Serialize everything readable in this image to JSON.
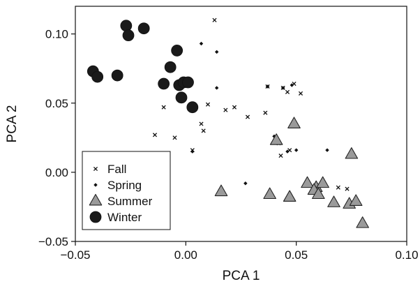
{
  "chart_data": {
    "type": "scatter",
    "title": "",
    "xlabel": "PCA 1",
    "ylabel": "PCA 2",
    "xlim": [
      -0.05,
      0.1
    ],
    "ylim": [
      -0.05,
      0.12
    ],
    "xticks": [
      -0.05,
      0.0,
      0.05,
      0.1
    ],
    "xtick_labels": [
      "−0.05",
      "0.00",
      "0.05",
      "0.10"
    ],
    "yticks": [
      -0.05,
      0.0,
      0.05,
      0.1
    ],
    "ytick_labels": [
      "−0.05",
      "0.00",
      "0.05",
      "0.10"
    ],
    "grid": false,
    "legend_position": "bottom-left",
    "series": [
      {
        "name": "Fall",
        "marker": "x",
        "color": "#111111",
        "points": [
          [
            0.013,
            0.11
          ],
          [
            -0.01,
            0.047
          ],
          [
            -0.014,
            0.027
          ],
          [
            -0.005,
            0.025
          ],
          [
            0.003,
            0.016
          ],
          [
            0.007,
            0.035
          ],
          [
            0.008,
            0.03
          ],
          [
            0.01,
            0.049
          ],
          [
            0.018,
            0.045
          ],
          [
            0.022,
            0.047
          ],
          [
            0.028,
            0.04
          ],
          [
            0.037,
            0.062
          ],
          [
            0.044,
            0.061
          ],
          [
            0.046,
            0.058
          ],
          [
            0.049,
            0.064
          ],
          [
            0.052,
            0.057
          ],
          [
            0.036,
            0.043
          ],
          [
            0.042,
            0.021
          ],
          [
            0.043,
            0.012
          ],
          [
            0.047,
            0.016
          ],
          [
            0.069,
            -0.011
          ],
          [
            0.073,
            -0.012
          ]
        ]
      },
      {
        "name": "Spring",
        "marker": "diamond",
        "color": "#111111",
        "points": [
          [
            0.007,
            0.093
          ],
          [
            0.014,
            0.087
          ],
          [
            0.014,
            0.061
          ],
          [
            0.003,
            0.015
          ],
          [
            0.046,
            0.015
          ],
          [
            0.05,
            0.016
          ],
          [
            0.04,
            0.026
          ],
          [
            0.064,
            0.016
          ],
          [
            0.027,
            -0.008
          ],
          [
            0.037,
            0.062
          ],
          [
            0.044,
            0.061
          ],
          [
            0.048,
            0.063
          ]
        ]
      },
      {
        "name": "Summer",
        "marker": "triangle",
        "color": "#9a9a9a",
        "points": [
          [
            0.049,
            0.035
          ],
          [
            0.041,
            0.023
          ],
          [
            0.075,
            0.013
          ],
          [
            0.016,
            -0.014
          ],
          [
            0.038,
            -0.016
          ],
          [
            0.047,
            -0.018
          ],
          [
            0.055,
            -0.008
          ],
          [
            0.059,
            -0.011
          ],
          [
            0.062,
            -0.008
          ],
          [
            0.058,
            -0.013
          ],
          [
            0.06,
            -0.016
          ],
          [
            0.067,
            -0.022
          ],
          [
            0.074,
            -0.023
          ],
          [
            0.077,
            -0.021
          ],
          [
            0.08,
            -0.037
          ]
        ]
      },
      {
        "name": "Winter",
        "marker": "circle",
        "color": "#1a1a1a",
        "points": [
          [
            -0.027,
            0.106
          ],
          [
            -0.026,
            0.099
          ],
          [
            -0.019,
            0.104
          ],
          [
            -0.004,
            0.088
          ],
          [
            -0.042,
            0.073
          ],
          [
            -0.04,
            0.069
          ],
          [
            -0.031,
            0.07
          ],
          [
            -0.007,
            0.076
          ],
          [
            -0.01,
            0.064
          ],
          [
            -0.003,
            0.063
          ],
          [
            -0.001,
            0.065
          ],
          [
            0.001,
            0.065
          ],
          [
            -0.002,
            0.054
          ],
          [
            0.003,
            0.047
          ]
        ]
      }
    ],
    "legend": [
      {
        "label": "Fall",
        "marker": "x"
      },
      {
        "label": "Spring",
        "marker": "diamond"
      },
      {
        "label": "Summer",
        "marker": "triangle"
      },
      {
        "label": "Winter",
        "marker": "circle"
      }
    ]
  }
}
